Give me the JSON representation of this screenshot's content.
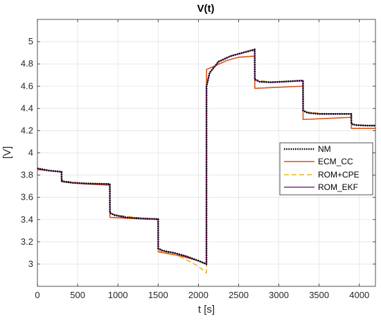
{
  "chart_data": {
    "type": "line",
    "title": "V(t)",
    "xlabel": "t [s]",
    "ylabel": "[V]",
    "xlim": [
      0,
      4200
    ],
    "ylim": [
      2.8,
      5.2
    ],
    "xticks": [
      0,
      500,
      1000,
      1500,
      2000,
      2500,
      3000,
      3500,
      4000
    ],
    "xtick_labels": [
      "0",
      "500",
      "1000",
      "1500",
      "2000",
      "2500",
      "3000",
      "3500",
      "4000"
    ],
    "yticks": [
      3,
      3.2,
      3.4,
      3.6,
      3.8,
      4,
      4.2,
      4.4,
      4.6,
      4.8,
      5
    ],
    "ytick_labels": [
      "3",
      "3.2",
      "3.4",
      "3.6",
      "3.8",
      "4",
      "4.2",
      "4.4",
      "4.6",
      "4.8",
      "5"
    ],
    "grid": true,
    "legend_position": "right",
    "series": [
      {
        "name": "NM",
        "color": "#000000",
        "style": "dotted",
        "x": [
          0,
          150,
          300,
          301,
          340,
          450,
          600,
          900,
          901,
          960,
          1100,
          1300,
          1500,
          1501,
          1560,
          1700,
          1850,
          2000,
          2100,
          2101,
          2140,
          2250,
          2400,
          2550,
          2700,
          2701,
          2760,
          2900,
          3050,
          3300,
          3301,
          3360,
          3500,
          3700,
          3900,
          3901,
          3960,
          4100,
          4200
        ],
        "y": [
          3.86,
          3.84,
          3.83,
          3.75,
          3.74,
          3.73,
          3.725,
          3.72,
          3.46,
          3.44,
          3.42,
          3.41,
          3.405,
          3.14,
          3.12,
          3.1,
          3.07,
          3.03,
          3.0,
          4.6,
          4.72,
          4.82,
          4.87,
          4.9,
          4.93,
          4.66,
          4.64,
          4.635,
          4.64,
          4.65,
          4.38,
          4.36,
          4.35,
          4.35,
          4.35,
          4.26,
          4.25,
          4.245,
          4.245
        ]
      },
      {
        "name": "ECM_CC",
        "color": "#d95319",
        "style": "solid",
        "x": [
          0,
          150,
          300,
          301,
          600,
          900,
          901,
          1200,
          1500,
          1501,
          1800,
          2000,
          2100,
          2101,
          2200,
          2350,
          2500,
          2700,
          2701,
          3300,
          3301,
          3900,
          3901,
          4200
        ],
        "y": [
          3.85,
          3.84,
          3.83,
          3.74,
          3.72,
          3.71,
          3.42,
          3.41,
          3.4,
          3.11,
          3.07,
          3.03,
          3.0,
          4.75,
          4.78,
          4.83,
          4.86,
          4.87,
          4.58,
          4.6,
          4.3,
          4.32,
          4.22,
          4.22
        ]
      },
      {
        "name": "ROM+CPE",
        "color": "#edb120",
        "style": "dashed",
        "x": [
          0,
          150,
          300,
          301,
          600,
          900,
          901,
          1200,
          1500,
          1501,
          1700,
          1850,
          2000,
          2100,
          2101,
          2140,
          2250,
          2400,
          2550,
          2700,
          2701,
          2900,
          3300,
          3301,
          3600,
          3900,
          3901,
          4200
        ],
        "y": [
          3.86,
          3.84,
          3.83,
          3.75,
          3.725,
          3.72,
          3.45,
          3.42,
          3.4,
          3.12,
          3.09,
          3.04,
          2.98,
          2.92,
          4.62,
          4.72,
          4.82,
          4.87,
          4.9,
          4.92,
          4.66,
          4.635,
          4.65,
          4.37,
          4.35,
          4.35,
          4.25,
          4.245
        ]
      },
      {
        "name": "ROM_EKF",
        "color": "#7e2f8e",
        "style": "solid",
        "x": [
          0,
          150,
          300,
          301,
          340,
          450,
          600,
          900,
          901,
          960,
          1100,
          1300,
          1500,
          1501,
          1560,
          1700,
          1850,
          2000,
          2100,
          2101,
          2140,
          2250,
          2400,
          2550,
          2700,
          2701,
          2760,
          2900,
          3050,
          3300,
          3301,
          3360,
          3500,
          3700,
          3900,
          3901,
          3960,
          4100,
          4200
        ],
        "y": [
          3.86,
          3.84,
          3.83,
          3.75,
          3.74,
          3.73,
          3.725,
          3.72,
          3.46,
          3.44,
          3.42,
          3.41,
          3.405,
          3.14,
          3.12,
          3.1,
          3.07,
          3.03,
          3.0,
          4.6,
          4.72,
          4.82,
          4.87,
          4.9,
          4.93,
          4.66,
          4.64,
          4.635,
          4.64,
          4.65,
          4.38,
          4.36,
          4.35,
          4.35,
          4.35,
          4.26,
          4.25,
          4.245,
          4.245
        ]
      }
    ]
  }
}
